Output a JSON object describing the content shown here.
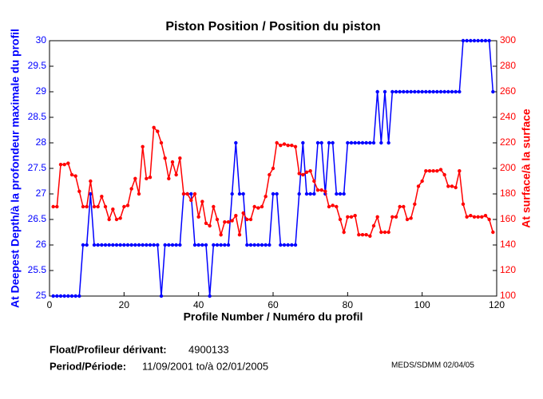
{
  "chart_data": {
    "type": "line",
    "title": "Piston Position / Position du piston",
    "xlabel": "Profile Number / Numéro du profil",
    "ylabel": "At Deepest Depth/à la profondeur maximale du profil",
    "y2label": "At surface/à la surface",
    "x": [
      1,
      2,
      3,
      4,
      5,
      6,
      7,
      8,
      9,
      10,
      11,
      12,
      13,
      14,
      15,
      16,
      17,
      18,
      19,
      20,
      21,
      22,
      23,
      24,
      25,
      26,
      27,
      28,
      29,
      30,
      31,
      32,
      33,
      34,
      35,
      36,
      37,
      38,
      39,
      40,
      41,
      42,
      43,
      44,
      45,
      46,
      47,
      48,
      49,
      50,
      51,
      52,
      53,
      54,
      55,
      56,
      57,
      58,
      59,
      60,
      61,
      62,
      63,
      64,
      65,
      66,
      67,
      68,
      69,
      70,
      71,
      72,
      73,
      74,
      75,
      76,
      77,
      78,
      79,
      80,
      81,
      82,
      83,
      84,
      85,
      86,
      87,
      88,
      89,
      90,
      91,
      92,
      93,
      94,
      95,
      96,
      97,
      98,
      99,
      100,
      101,
      102,
      103,
      104,
      105,
      106,
      107,
      108,
      109,
      110,
      111,
      112,
      113,
      114,
      115,
      116,
      117,
      118,
      119
    ],
    "series": [
      {
        "color": "#0000ff",
        "axis": "y",
        "values": [
          25,
          25,
          25,
          25,
          25,
          25,
          25,
          25,
          26,
          26,
          27,
          26,
          26,
          26,
          26,
          26,
          26,
          26,
          26,
          26,
          26,
          26,
          26,
          26,
          26,
          26,
          26,
          26,
          26,
          25,
          26,
          26,
          26,
          26,
          26,
          27,
          27,
          27,
          26,
          26,
          26,
          26,
          25,
          26,
          26,
          26,
          26,
          26,
          27,
          28,
          27,
          27,
          26,
          26,
          26,
          26,
          26,
          26,
          26,
          27,
          27,
          26,
          26,
          26,
          26,
          26,
          27,
          28,
          27,
          27,
          27,
          28,
          28,
          27,
          28,
          28,
          27,
          27,
          27,
          28,
          28,
          28,
          28,
          28,
          28,
          28,
          28,
          29,
          28,
          29,
          28,
          29,
          29,
          29,
          29,
          29,
          29,
          29,
          29,
          29,
          29,
          29,
          29,
          29,
          29,
          29,
          29,
          29,
          29,
          29,
          30,
          30,
          30,
          30,
          30,
          30,
          30,
          30,
          29
        ]
      },
      {
        "color": "#ff0000",
        "axis": "y2",
        "values": [
          170,
          170,
          203,
          203,
          204,
          195,
          194,
          182,
          170,
          170,
          190,
          170,
          170,
          178,
          170,
          160,
          168,
          160,
          161,
          170,
          171,
          184,
          192,
          180,
          217,
          192,
          193,
          232,
          229,
          220,
          208,
          192,
          205,
          195,
          208,
          180,
          180,
          175,
          180,
          162,
          174,
          157,
          155,
          170,
          160,
          148,
          158,
          158,
          159,
          163,
          148,
          165,
          160,
          160,
          170,
          169,
          170,
          178,
          195,
          200,
          220,
          218,
          219,
          218,
          218,
          217,
          196,
          195,
          197,
          198,
          190,
          183,
          183,
          182,
          170,
          171,
          170,
          160,
          150,
          162,
          162,
          163,
          148,
          148,
          148,
          147,
          155,
          162,
          150,
          150,
          150,
          162,
          162,
          170,
          170,
          160,
          161,
          172,
          186,
          190,
          198,
          198,
          198,
          198,
          199,
          195,
          186,
          186,
          185,
          198,
          172,
          162,
          163,
          162,
          162,
          162,
          163,
          160,
          150
        ]
      }
    ],
    "xlim": [
      0,
      120
    ],
    "xticks": [
      0,
      20,
      40,
      60,
      80,
      100,
      120
    ],
    "ylim": [
      25,
      30
    ],
    "yticks": [
      25,
      25.5,
      26,
      26.5,
      27,
      27.5,
      28,
      28.5,
      29,
      29.5,
      30
    ],
    "y2lim": [
      100,
      300
    ],
    "y2ticks": [
      100,
      120,
      140,
      160,
      180,
      200,
      220,
      240,
      260,
      280,
      300
    ],
    "annotations": [
      "Float/Profileur dérivant:",
      "4900133",
      "Period/Période:",
      "11/09/2001  to/à  02/01/2005",
      "MEDS/SDMM  02/04/05"
    ]
  }
}
